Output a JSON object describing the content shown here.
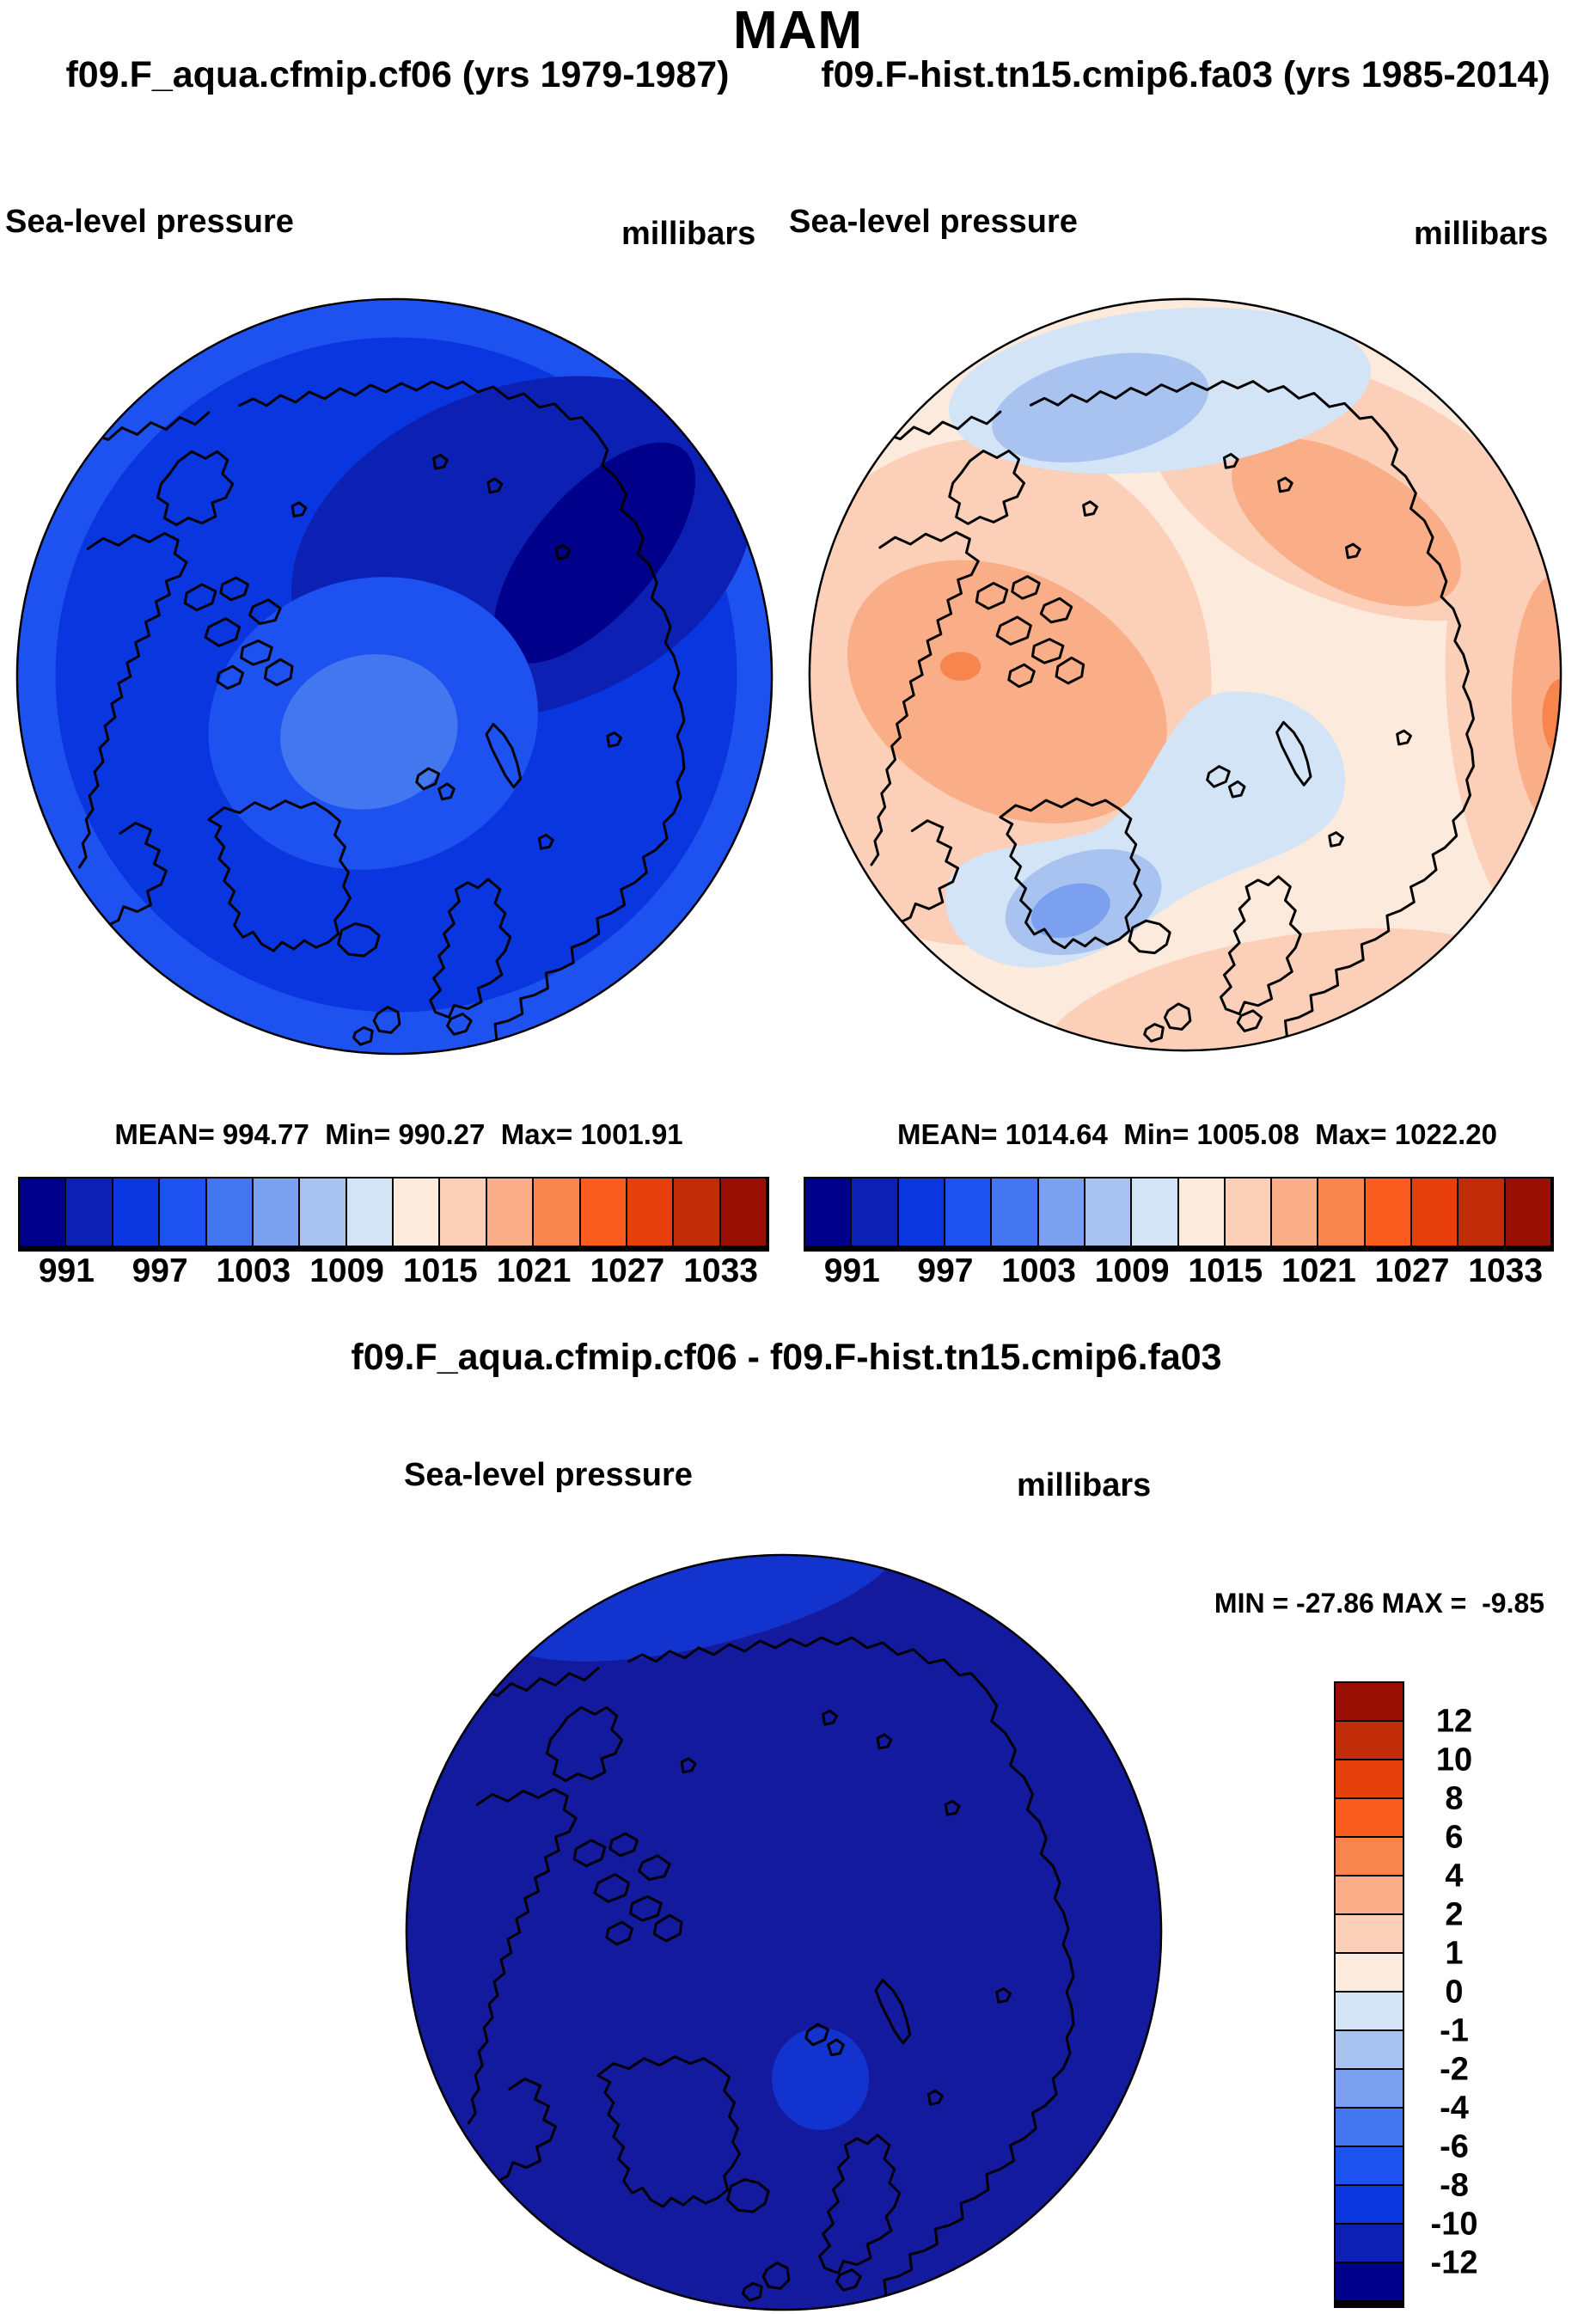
{
  "page": {
    "background": "#ffffff"
  },
  "header": {
    "title": "MAM",
    "left_subtitle": "f09.F_aqua.cfmip.cf06 (yrs 1979-1987)",
    "right_subtitle": "f09.F-hist.tn15.cmip6.fa03 (yrs 1985-2014)"
  },
  "panels": {
    "left": {
      "field_label": "Sea-level pressure",
      "units_label": "millibars",
      "stats_line": "MEAN= 994.77  Min= 990.27  Max= 1001.91"
    },
    "right": {
      "field_label": "Sea-level pressure",
      "units_label": "millibars",
      "stats_line": "MEAN= 1014.64  Min= 1005.08  Max= 1022.20"
    }
  },
  "colorbar": {
    "cell_count": 16,
    "cell_colors": [
      "#00008B",
      "#0C20B4",
      "#0936DE",
      "#1E52F0",
      "#4377F0",
      "#7AA0EF",
      "#A9C3F0",
      "#D4E4F7",
      "#FCEADC",
      "#FBCFB8",
      "#F9AE88",
      "#F8854E",
      "#FA5B1F",
      "#E73F0C",
      "#C12D08",
      "#990F03"
    ],
    "tick_labels": [
      "991",
      "997",
      "1003",
      "1009",
      "1015",
      "1021",
      "1027",
      "1033"
    ],
    "tick_positions": [
      1,
      3,
      5,
      7,
      9,
      11,
      13,
      15
    ]
  },
  "diff": {
    "title": "f09.F_aqua.cfmip.cf06 - f09.F-hist.tn15.cmip6.fa03",
    "field_label": "Sea-level pressure",
    "units_label": "millibars",
    "minmax_line": "MIN = -27.86 MAX =  -9.85",
    "colorbar": {
      "cell_count": 16,
      "cell_colors": [
        "#990F03",
        "#C12D08",
        "#E73F0C",
        "#FA5B1F",
        "#F8854E",
        "#F9AE88",
        "#FBCFB8",
        "#FCEADC",
        "#D4E4F7",
        "#A9C3F0",
        "#7AA0EF",
        "#4377F0",
        "#1E52F0",
        "#0936DE",
        "#0C20B4",
        "#00008B"
      ],
      "tick_labels": [
        "12",
        "10",
        "8",
        "6",
        "4",
        "2",
        "1",
        "0",
        "-1",
        "-2",
        "-4",
        "-6",
        "-8",
        "-10",
        "-12"
      ],
      "tick_positions": [
        1,
        2,
        3,
        4,
        5,
        6,
        7,
        8,
        9,
        10,
        11,
        12,
        13,
        14,
        15
      ]
    },
    "map_colors": {
      "base": "#141A9E",
      "patch": "#1233CE"
    }
  },
  "chart_data": [
    {
      "type": "heatmap",
      "subtype": "polar_stereographic_filled_contour_map",
      "title": "f09.F_aqua.cfmip.cf06 (yrs 1979-1987)",
      "season": "MAM",
      "variable": "Sea-level pressure",
      "units": "millibars",
      "stats": {
        "mean": 994.77,
        "min": 990.27,
        "max": 1001.91
      },
      "contour_levels": [
        991,
        994,
        997,
        1000,
        1003,
        1006,
        1009,
        1012,
        1015,
        1018,
        1021,
        1024,
        1027,
        1030,
        1033
      ],
      "labeled_levels": [
        991,
        997,
        1003,
        1009,
        1015,
        1021,
        1027,
        1033
      ],
      "palette_description": "16-level dark-blue to dark-red diverging",
      "legend_position": "bottom",
      "notes": "Map almost entirely in dark/medium blues (values ~990-1002 mb); darkest navy lobe in upper-right sector, lightest blue core near the pole."
    },
    {
      "type": "heatmap",
      "subtype": "polar_stereographic_filled_contour_map",
      "title": "f09.F-hist.tn15.cmip6.fa03 (yrs 1985-2014)",
      "season": "MAM",
      "variable": "Sea-level pressure",
      "units": "millibars",
      "stats": {
        "mean": 1014.64,
        "min": 1005.08,
        "max": 1022.2
      },
      "contour_levels": [
        991,
        994,
        997,
        1000,
        1003,
        1006,
        1009,
        1012,
        1015,
        1018,
        1021,
        1024,
        1027,
        1030,
        1033
      ],
      "labeled_levels": [
        991,
        997,
        1003,
        1009,
        1015,
        1021,
        1027,
        1033
      ],
      "palette_description": "16-level dark-blue to dark-red diverging",
      "legend_position": "bottom",
      "notes": "Mostly pale peach/salmon (1012-1021 mb) with light-blue lows (1005-1012 mb) over the top sector and a comma-shaped band from the Kara Sea to south of Iceland."
    },
    {
      "type": "heatmap",
      "subtype": "polar_stereographic_filled_contour_map",
      "title": "f09.F_aqua.cfmip.cf06 - f09.F-hist.tn15.cmip6.fa03",
      "variable": "Sea-level pressure difference",
      "units": "millibars",
      "stats": {
        "min": -27.86,
        "max": -9.85
      },
      "contour_levels": [
        -12,
        -10,
        -8,
        -6,
        -4,
        -2,
        -1,
        0,
        1,
        2,
        4,
        6,
        8,
        10,
        12
      ],
      "palette_description": "16-level dark-red to dark-blue diverging (vertical bar, positive up)",
      "legend_position": "right",
      "notes": "Entire disk below -12 mb (solid dark navy) with small brighter-blue (-12 to -10 mb) patches at the upper rim and near Svalbard."
    }
  ]
}
